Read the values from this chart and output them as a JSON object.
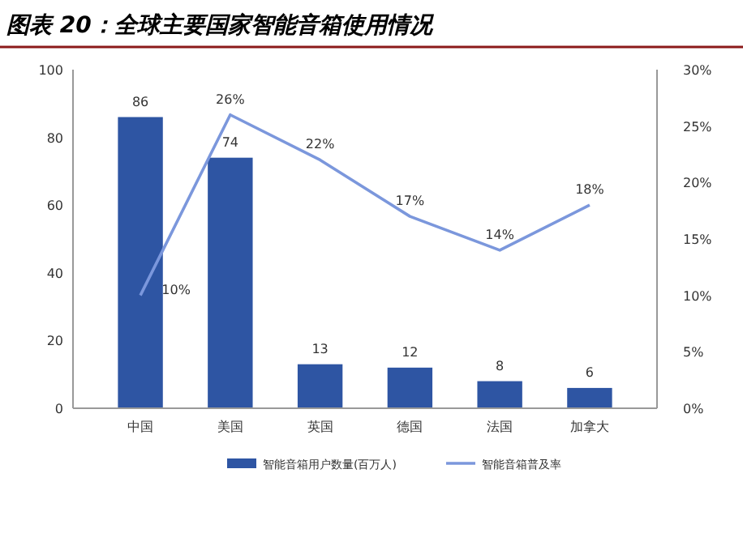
{
  "chart_data": {
    "type": "bar",
    "title": "图表 20：全球主要国家智能音箱使用情况",
    "categories": [
      "中国",
      "美国",
      "英国",
      "德国",
      "法国",
      "加拿大"
    ],
    "series": [
      {
        "name": "智能音箱用户数量(百万人)",
        "color": "#2e55a3",
        "values": [
          86,
          74,
          13,
          12,
          8,
          6
        ]
      },
      {
        "name": "智能音箱普及率",
        "type": "line",
        "axis": "y2",
        "color": "#7b97dc",
        "values": [
          10,
          26,
          22,
          17,
          14,
          18
        ],
        "value_labels": [
          "10%",
          "26%",
          "22%",
          "17%",
          "14%",
          "18%"
        ]
      }
    ],
    "ylim": [
      0,
      100
    ],
    "yticks": [
      0,
      20,
      40,
      60,
      80,
      100
    ],
    "y2lim": [
      0,
      30
    ],
    "y2ticks": [
      {
        "value": 0,
        "label": "0%"
      },
      {
        "value": 5,
        "label": "5%"
      },
      {
        "value": 10,
        "label": "10%"
      },
      {
        "value": 15,
        "label": "15%"
      },
      {
        "value": 20,
        "label": "20%"
      },
      {
        "value": 25,
        "label": "25%"
      },
      {
        "value": 30,
        "label": "30%"
      }
    ],
    "data_labels": true,
    "legend": "bottom",
    "marker": "none"
  }
}
